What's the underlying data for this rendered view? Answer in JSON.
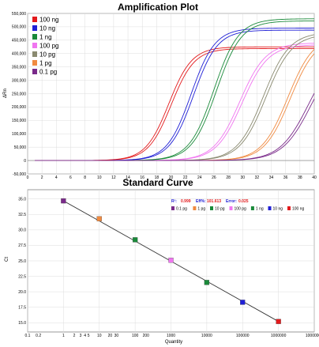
{
  "chart_data": [
    {
      "type": "line",
      "title": "Amplification Plot",
      "xlabel": "",
      "ylabel": "ΔRn",
      "xlim": [
        0,
        40
      ],
      "ylim": [
        -50000,
        550000
      ],
      "x_ticks": [
        0,
        2,
        4,
        6,
        8,
        10,
        12,
        14,
        16,
        18,
        20,
        22,
        24,
        26,
        28,
        30,
        32,
        34,
        36,
        38,
        40
      ],
      "y_ticks": [
        -50000,
        0,
        50000,
        100000,
        150000,
        200000,
        250000,
        300000,
        350000,
        400000,
        450000,
        500000,
        550000
      ],
      "y_tick_labels": [
        "-50,000",
        "0",
        "50,000",
        "100,000",
        "150,000",
        "200,000",
        "250,000",
        "300,000",
        "350,000",
        "400,000",
        "450,000",
        "500,000",
        "550,000"
      ],
      "grid": true,
      "legend": "top-left",
      "series": [
        {
          "name": "100 ng",
          "color": "#e31a1c",
          "ct": 15.2,
          "plateau": 425000,
          "k": 0.62
        },
        {
          "name": "10 ng",
          "color": "#1f1fd6",
          "ct": 18.3,
          "plateau": 495000,
          "k": 0.6
        },
        {
          "name": "1 ng",
          "color": "#1a8a3a",
          "ct": 21.5,
          "plateau": 530000,
          "k": 0.58
        },
        {
          "name": "100 pg",
          "color": "#f075f0",
          "ct": 25.1,
          "plateau": 440000,
          "k": 0.55
        },
        {
          "name": "10 pg",
          "color": "#8a8a70",
          "ct": 28.4,
          "plateau": 480000,
          "k": 0.55
        },
        {
          "name": "1 pg",
          "color": "#f08a40",
          "ct": 31.8,
          "plateau": 470000,
          "k": 0.55
        },
        {
          "name": "0.1 pg",
          "color": "#7a2a8a",
          "ct": 34.7,
          "plateau": 420000,
          "k": 0.5
        }
      ]
    },
    {
      "type": "scatter",
      "title": "Standard Curve",
      "xlabel": "Quantity",
      "ylabel": "Ct",
      "x_scale": "log",
      "xlim": [
        0.1,
        10000000
      ],
      "ylim": [
        13.5,
        36.5
      ],
      "x_ticks": [
        0.1,
        0.2,
        1,
        2,
        3,
        4,
        5,
        10,
        20,
        30,
        100,
        200,
        1000,
        10000,
        100000,
        1000000,
        10000000
      ],
      "x_tick_labels": [
        "0.1",
        "0.2",
        "1",
        "2",
        "3",
        "4",
        "5",
        "10",
        "20",
        "30",
        "100",
        "200",
        "1000",
        "10000",
        "100000",
        "1000000",
        "10000000"
      ],
      "y_ticks": [
        15.0,
        17.5,
        20.0,
        22.5,
        25.0,
        27.5,
        30.0,
        32.5,
        35.0
      ],
      "y_tick_labels": [
        "15.0",
        "17.5",
        "20.0",
        "22.5",
        "25.0",
        "27.5",
        "30.0",
        "32.5",
        "35.0"
      ],
      "grid": true,
      "legend": "top-right",
      "fit_line": [
        [
          1,
          34.7
        ],
        [
          1000000,
          15.2
        ]
      ],
      "stats": {
        "r2_label": "R²:",
        "r2": "0.999",
        "eff_label": "Eff%:",
        "eff": "101.613",
        "error_label": "Error:",
        "error": "0.025"
      },
      "points": [
        {
          "name": "0.1 pg",
          "x": 1,
          "y": 34.7,
          "color": "#7a2a8a"
        },
        {
          "name": "1 pg",
          "x": 10,
          "y": 31.8,
          "color": "#f08a40"
        },
        {
          "name": "10 pg",
          "x": 100,
          "y": 28.4,
          "color": "#1a8a3a"
        },
        {
          "name": "100 pg",
          "x": 1000,
          "y": 25.1,
          "color": "#f075f0"
        },
        {
          "name": "1 ng",
          "x": 10000,
          "y": 21.5,
          "color": "#1a8a3a"
        },
        {
          "name": "10 ng",
          "x": 100000,
          "y": 18.3,
          "color": "#1f1fd6"
        },
        {
          "name": "100 ng",
          "x": 1000000,
          "y": 15.2,
          "color": "#e31a1c"
        }
      ],
      "legend_entries": [
        {
          "name": "0.1 pg",
          "color": "#7a2a8a"
        },
        {
          "name": "1 pg",
          "color": "#f08a40"
        },
        {
          "name": "10 pg",
          "color": "#1a8a3a"
        },
        {
          "name": "100 pg",
          "color": "#f075f0"
        },
        {
          "name": "1 ng",
          "color": "#1a8a3a"
        },
        {
          "name": "10 ng",
          "color": "#1f1fd6"
        },
        {
          "name": "100 ng",
          "color": "#e31a1c"
        }
      ]
    }
  ]
}
